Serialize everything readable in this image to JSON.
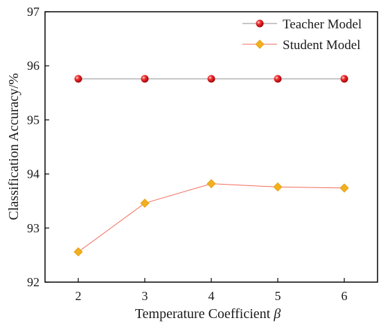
{
  "chart_data": {
    "type": "line",
    "title": "",
    "xlabel": "Temperature Coefficient",
    "xlabel_symbol": "β",
    "ylabel": "Classification Accuracy/%",
    "x": [
      2,
      3,
      4,
      5,
      6
    ],
    "xlim": [
      1.5,
      6.5
    ],
    "ylim": [
      92,
      97
    ],
    "xticks": [
      "2",
      "3",
      "4",
      "5",
      "6"
    ],
    "yticks": [
      "92",
      "93",
      "94",
      "95",
      "96",
      "97"
    ],
    "grid": false,
    "legend_position": "top-right",
    "series": [
      {
        "name": "Teacher Model",
        "values": [
          95.76,
          95.76,
          95.76,
          95.76,
          95.76
        ],
        "marker": "sphere",
        "line_color": "#8c8c8c",
        "marker_color": "#e0101a"
      },
      {
        "name": "Student Model",
        "values": [
          92.56,
          93.46,
          93.82,
          93.76,
          93.74
        ],
        "marker": "diamond",
        "line_color": "#f26a5a",
        "marker_color": "#f2b01e"
      }
    ]
  }
}
